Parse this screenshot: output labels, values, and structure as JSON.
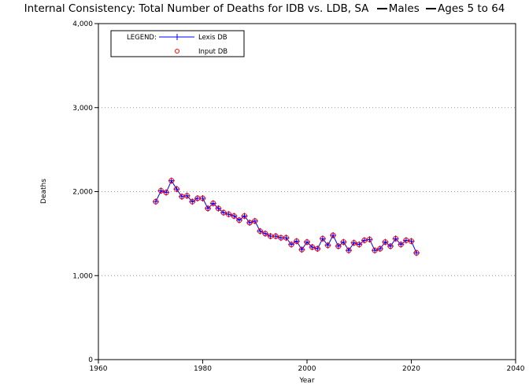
{
  "chart_data": {
    "type": "line",
    "title": "Internal Consistency: Total Number of Deaths for IDB vs. LDB, SA",
    "title_suffix": [
      "Males",
      "Ages 5 to 64"
    ],
    "xlabel": "Year",
    "ylabel": "Deaths",
    "xlim": [
      1960,
      2040
    ],
    "ylim": [
      0,
      4000
    ],
    "x_ticks": [
      "1960",
      "1980",
      "2000",
      "2020",
      "2040"
    ],
    "y_ticks": [
      "0",
      "1,000",
      "2,000",
      "3,000",
      "4,000"
    ],
    "grid": "horizontal dotted",
    "legend": {
      "position": "top-left",
      "header": "LEGEND:"
    },
    "series": [
      {
        "name": "Lexis DB",
        "marker": "plus",
        "color": "#0000ff",
        "x": [
          1971,
          1972,
          1973,
          1974,
          1975,
          1976,
          1977,
          1978,
          1979,
          1980,
          1981,
          1982,
          1983,
          1984,
          1985,
          1986,
          1987,
          1988,
          1989,
          1990,
          1991,
          1992,
          1993,
          1994,
          1995,
          1996,
          1997,
          1998,
          1999,
          2000,
          2001,
          2002,
          2003,
          2004,
          2005,
          2006,
          2007,
          2008,
          2009,
          2010,
          2011,
          2012,
          2013,
          2014,
          2015,
          2016,
          2017,
          2018,
          2019,
          2020,
          2021
        ],
        "values": [
          1880,
          2010,
          1990,
          2130,
          2030,
          1940,
          1950,
          1880,
          1920,
          1920,
          1800,
          1860,
          1800,
          1750,
          1730,
          1710,
          1660,
          1710,
          1630,
          1650,
          1530,
          1500,
          1470,
          1470,
          1450,
          1450,
          1370,
          1410,
          1310,
          1400,
          1340,
          1320,
          1440,
          1360,
          1480,
          1350,
          1400,
          1300,
          1390,
          1370,
          1420,
          1430,
          1300,
          1320,
          1400,
          1350,
          1440,
          1370,
          1420,
          1410,
          1270
        ]
      },
      {
        "name": "Input DB",
        "marker": "circle",
        "color": "#ff0000",
        "x": [
          1971,
          1972,
          1973,
          1974,
          1975,
          1976,
          1977,
          1978,
          1979,
          1980,
          1981,
          1982,
          1983,
          1984,
          1985,
          1986,
          1987,
          1988,
          1989,
          1990,
          1991,
          1992,
          1993,
          1994,
          1995,
          1996,
          1997,
          1998,
          1999,
          2000,
          2001,
          2002,
          2003,
          2004,
          2005,
          2006,
          2007,
          2008,
          2009,
          2010,
          2011,
          2012,
          2013,
          2014,
          2015,
          2016,
          2017,
          2018,
          2019,
          2020,
          2021
        ],
        "values": [
          1880,
          2010,
          1990,
          2130,
          2030,
          1940,
          1950,
          1880,
          1920,
          1920,
          1800,
          1860,
          1800,
          1750,
          1730,
          1710,
          1660,
          1710,
          1630,
          1650,
          1530,
          1500,
          1470,
          1470,
          1450,
          1450,
          1370,
          1410,
          1310,
          1400,
          1340,
          1320,
          1440,
          1360,
          1480,
          1350,
          1400,
          1300,
          1390,
          1370,
          1420,
          1430,
          1300,
          1320,
          1400,
          1350,
          1440,
          1370,
          1420,
          1410,
          1270
        ]
      }
    ]
  }
}
